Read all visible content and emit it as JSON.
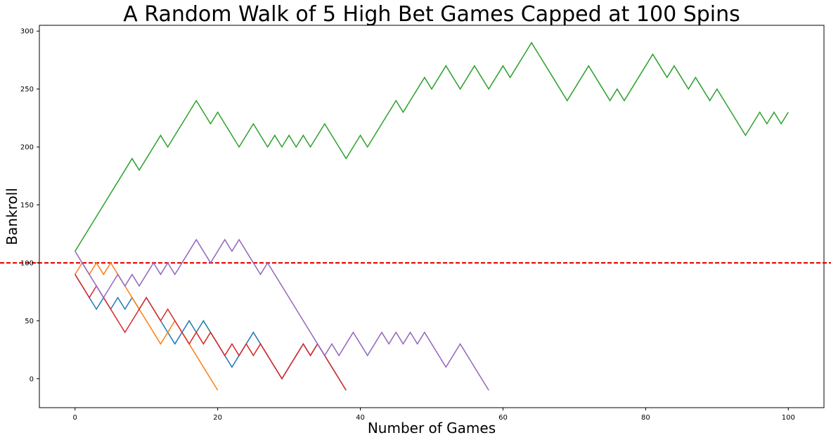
{
  "chart_data": {
    "type": "line",
    "title": "A Random Walk of 5 High Bet Games Capped at 100 Spins",
    "xlabel": "Number of Games",
    "ylabel": "Bankroll",
    "xlim": [
      -5,
      105
    ],
    "ylim": [
      -25,
      305
    ],
    "x_ticks": [
      0,
      20,
      40,
      60,
      80,
      100
    ],
    "y_ticks": [
      0,
      50,
      100,
      150,
      200,
      250,
      300
    ],
    "grid": false,
    "reference_line": {
      "y": 100,
      "color": "#e60000",
      "style": "dashed"
    },
    "series": [
      {
        "color": "#1f77b4",
        "x": [
          0,
          1,
          2,
          3,
          4,
          5,
          6,
          7,
          8,
          9,
          10,
          11,
          12,
          13,
          14,
          15,
          16,
          17,
          18,
          19,
          20,
          21,
          22,
          23,
          24,
          25,
          26,
          27,
          28,
          29,
          30,
          31,
          32,
          33,
          34,
          35,
          36,
          37,
          38
        ],
        "values": [
          90,
          80,
          70,
          60,
          70,
          60,
          70,
          60,
          70,
          60,
          70,
          60,
          50,
          40,
          30,
          40,
          50,
          40,
          50,
          40,
          30,
          20,
          10,
          20,
          30,
          40,
          30,
          20,
          10,
          0,
          10,
          20,
          30,
          20,
          30,
          20,
          10,
          0,
          -10
        ]
      },
      {
        "color": "#ff7f0e",
        "x": [
          0,
          1,
          2,
          3,
          4,
          5,
          6,
          7,
          8,
          9,
          10,
          11,
          12,
          13,
          14,
          15,
          16,
          17,
          18,
          19,
          20
        ],
        "values": [
          90,
          100,
          90,
          100,
          90,
          100,
          90,
          80,
          70,
          60,
          50,
          40,
          30,
          40,
          50,
          40,
          30,
          20,
          10,
          0,
          -10
        ]
      },
      {
        "color": "#2ca02c",
        "x": [
          0,
          1,
          2,
          3,
          4,
          5,
          6,
          7,
          8,
          9,
          10,
          11,
          12,
          13,
          14,
          15,
          16,
          17,
          18,
          19,
          20,
          21,
          22,
          23,
          24,
          25,
          26,
          27,
          28,
          29,
          30,
          31,
          32,
          33,
          34,
          35,
          36,
          37,
          38,
          39,
          40,
          41,
          42,
          43,
          44,
          45,
          46,
          47,
          48,
          49,
          50,
          51,
          52,
          53,
          54,
          55,
          56,
          57,
          58,
          59,
          60,
          61,
          62,
          63,
          64,
          65,
          66,
          67,
          68,
          69,
          70,
          71,
          72,
          73,
          74,
          75,
          76,
          77,
          78,
          79,
          80,
          81,
          82,
          83,
          84,
          85,
          86,
          87,
          88,
          89,
          90,
          91,
          92,
          93,
          94,
          95,
          96,
          97,
          98,
          99,
          100
        ],
        "values": [
          110,
          120,
          130,
          140,
          150,
          160,
          170,
          180,
          190,
          180,
          190,
          200,
          210,
          200,
          210,
          220,
          230,
          240,
          230,
          220,
          230,
          220,
          210,
          200,
          210,
          220,
          210,
          200,
          210,
          200,
          210,
          200,
          210,
          200,
          210,
          220,
          210,
          200,
          190,
          200,
          210,
          200,
          210,
          220,
          230,
          240,
          230,
          240,
          250,
          260,
          250,
          260,
          270,
          260,
          250,
          260,
          270,
          260,
          250,
          260,
          270,
          260,
          270,
          280,
          290,
          280,
          270,
          260,
          250,
          240,
          250,
          260,
          270,
          260,
          250,
          240,
          250,
          240,
          250,
          260,
          270,
          280,
          270,
          260,
          270,
          260,
          250,
          260,
          250,
          240,
          250,
          240,
          230,
          220,
          210,
          220,
          230,
          220,
          230,
          220,
          230
        ]
      },
      {
        "color": "#d62728",
        "x": [
          0,
          1,
          2,
          3,
          4,
          5,
          6,
          7,
          8,
          9,
          10,
          11,
          12,
          13,
          14,
          15,
          16,
          17,
          18,
          19,
          20,
          21,
          22,
          23,
          24,
          25,
          26,
          27,
          28,
          29,
          30,
          31,
          32,
          33,
          34,
          35,
          36,
          37,
          38
        ],
        "values": [
          90,
          80,
          70,
          80,
          70,
          60,
          50,
          40,
          50,
          60,
          70,
          60,
          50,
          60,
          50,
          40,
          30,
          40,
          30,
          40,
          30,
          20,
          30,
          20,
          30,
          20,
          30,
          20,
          10,
          0,
          10,
          20,
          30,
          20,
          30,
          20,
          10,
          0,
          -10
        ]
      },
      {
        "color": "#9467bd",
        "x": [
          0,
          1,
          2,
          3,
          4,
          5,
          6,
          7,
          8,
          9,
          10,
          11,
          12,
          13,
          14,
          15,
          16,
          17,
          18,
          19,
          20,
          21,
          22,
          23,
          24,
          25,
          26,
          27,
          28,
          29,
          30,
          31,
          32,
          33,
          34,
          35,
          36,
          37,
          38,
          39,
          40,
          41,
          42,
          43,
          44,
          45,
          46,
          47,
          48,
          49,
          50,
          51,
          52,
          53,
          54,
          55,
          56,
          57,
          58
        ],
        "values": [
          110,
          100,
          90,
          80,
          70,
          80,
          90,
          80,
          90,
          80,
          90,
          100,
          90,
          100,
          90,
          100,
          110,
          120,
          110,
          100,
          110,
          120,
          110,
          120,
          110,
          100,
          90,
          100,
          90,
          80,
          70,
          60,
          50,
          40,
          30,
          20,
          30,
          20,
          30,
          40,
          30,
          20,
          30,
          40,
          30,
          40,
          30,
          40,
          30,
          40,
          30,
          20,
          10,
          20,
          30,
          20,
          10,
          0,
          -10
        ]
      }
    ]
  }
}
